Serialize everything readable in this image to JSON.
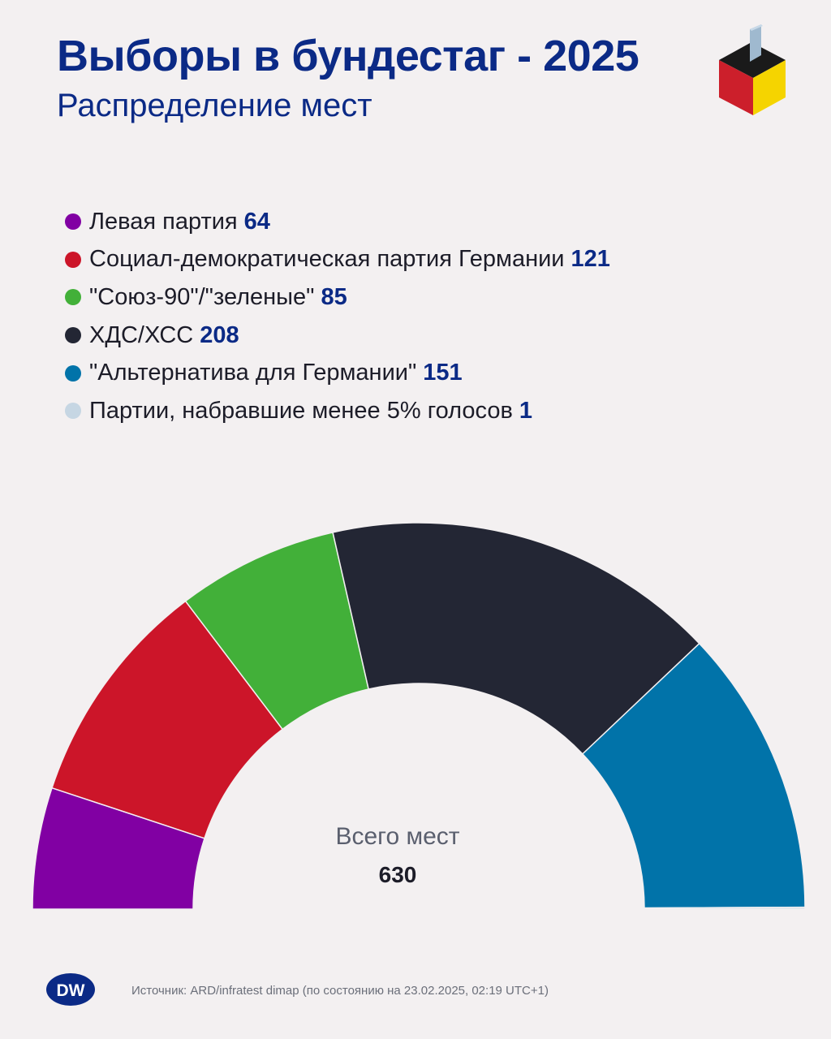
{
  "header": {
    "title": "Выборы в бундестаг - 2025",
    "subtitle": "Распределение мест"
  },
  "icons": {
    "ballot_box": "ballot-box-icon",
    "logo": "dw-logo",
    "logo_text": "DW"
  },
  "colors": {
    "title": "#0b2a86",
    "background": "#f3f0f1"
  },
  "chart_data": {
    "type": "parliament-semicircle",
    "title": "Распределение мест",
    "series": [
      {
        "name": "Левая партия",
        "value": 64,
        "color": "#8100a3"
      },
      {
        "name": "Социал-демократическая партия Германии",
        "value": 121,
        "color": "#cc1529"
      },
      {
        "name": "\"Союз-90\"/\"зеленые\"",
        "value": 85,
        "color": "#42b039"
      },
      {
        "name": "ХДС/ХСС",
        "value": 208,
        "color": "#232634"
      },
      {
        "name": "\"Альтернатива для Германии\"",
        "value": 151,
        "color": "#0173a9"
      },
      {
        "name": "Партии, набравшие менее 5% голосов",
        "value": 1,
        "color": "#c6d6e3"
      }
    ],
    "total_label": "Всего мест",
    "total": 630
  },
  "footer": {
    "source": "Источник: ARD/infratest dimap (по состоянию на 23.02.2025, 02:19 UTC+1)"
  }
}
